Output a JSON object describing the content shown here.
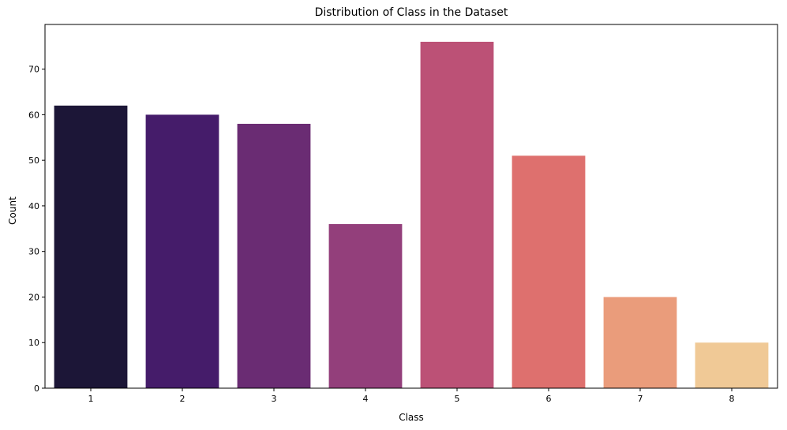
{
  "chart_data": {
    "type": "bar",
    "title": "Distribution of Class in the Dataset",
    "xlabel": "Class",
    "ylabel": "Count",
    "categories": [
      "1",
      "2",
      "3",
      "4",
      "5",
      "6",
      "7",
      "8"
    ],
    "values": [
      62,
      60,
      58,
      36,
      76,
      51,
      20,
      10
    ],
    "colors": [
      "#1c1637",
      "#451c6a",
      "#6a2c73",
      "#933f7b",
      "#bc5176",
      "#de706e",
      "#ea9c7b",
      "#f0c996"
    ],
    "ylim": [
      0,
      79.8
    ],
    "yticks": [
      0,
      10,
      20,
      30,
      40,
      50,
      60,
      70
    ],
    "grid": false,
    "legend": "none"
  }
}
